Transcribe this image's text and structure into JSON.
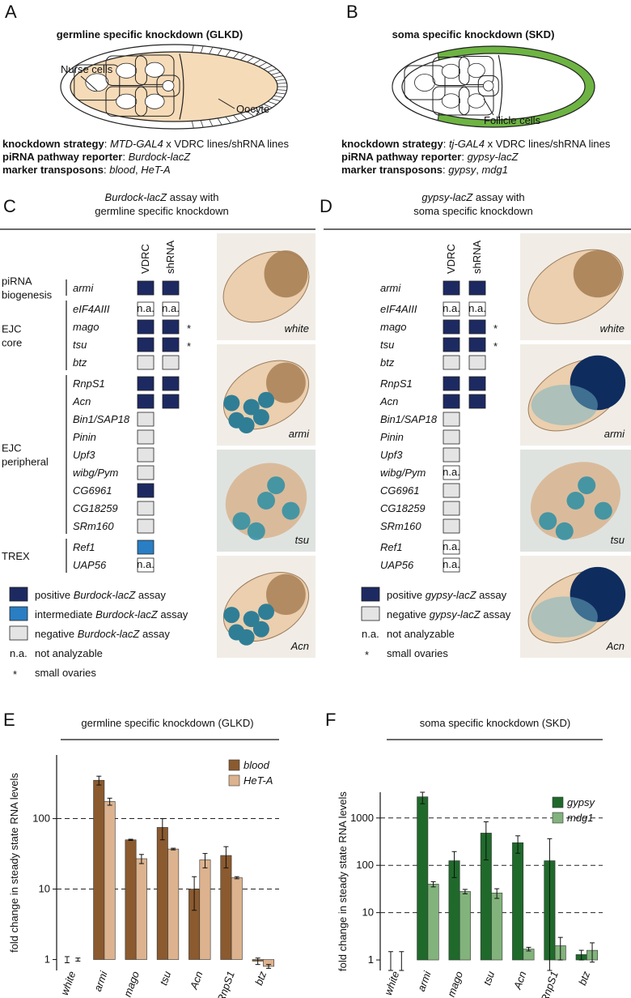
{
  "panel_a": {
    "label": "A",
    "title": "germline specific knockdown (GLKD)",
    "diagram_labels": [
      "Nurse cells",
      "Oocyte"
    ],
    "lines": [
      [
        {
          "text": "knockdown strategy",
          "style": "bold"
        },
        {
          "text": ": "
        },
        {
          "text": "MTD-GAL4",
          "style": "italic"
        },
        {
          "text": " x VDRC lines/shRNA lines"
        }
      ],
      [
        {
          "text": "piRNA pathway reporter",
          "style": "bold"
        },
        {
          "text": ": "
        },
        {
          "text": "Burdock-lacZ",
          "style": "italic"
        }
      ],
      [
        {
          "text": "marker transposons",
          "style": "bold"
        },
        {
          "text": ": "
        },
        {
          "text": "blood",
          "style": "italic"
        },
        {
          "text": ", "
        },
        {
          "text": "HeT-A",
          "style": "italic"
        }
      ]
    ]
  },
  "panel_b": {
    "label": "B",
    "title": "soma specific knockdown (SKD)",
    "diagram_labels": [
      "Follicle cells"
    ],
    "lines": [
      [
        {
          "text": "knockdown strategy",
          "style": "bold"
        },
        {
          "text": ": "
        },
        {
          "text": "tj-GAL4",
          "style": "italic"
        },
        {
          "text": " x VDRC lines/shRNA lines"
        }
      ],
      [
        {
          "text": "piRNA pathway reporter",
          "style": "bold"
        },
        {
          "text": ": "
        },
        {
          "text": "gypsy-lacZ",
          "style": "italic"
        }
      ],
      [
        {
          "text": "marker transposons",
          "style": "bold"
        },
        {
          "text": ": "
        },
        {
          "text": "gypsy",
          "style": "italic"
        },
        {
          "text": ", "
        },
        {
          "text": "mdg1",
          "style": "italic"
        }
      ]
    ]
  },
  "panel_c": {
    "label": "C",
    "title": [
      [
        {
          "text": "Burdock-lacZ",
          "style": "italic"
        },
        {
          "text": " assay with"
        }
      ],
      [
        {
          "text": "germline specific knockdown"
        }
      ]
    ],
    "columns": [
      "VDRC",
      "shRNA"
    ],
    "groups": [
      {
        "label": [
          "piRNA",
          "biogenesis"
        ],
        "rows": [
          {
            "gene": "armi",
            "cells": [
              "#1d2a62",
              "#1d2a62"
            ]
          }
        ]
      },
      {
        "label": [
          "EJC",
          "core"
        ],
        "rows": [
          {
            "gene": "eIF4AIII",
            "cells": [
              "n.a.",
              "n.a."
            ]
          },
          {
            "gene": "mago",
            "cells": [
              "#1d2a62",
              "#1d2a62"
            ],
            "note": "*"
          },
          {
            "gene": "tsu",
            "cells": [
              "#1d2a62",
              "#1d2a62"
            ],
            "note": "*"
          },
          {
            "gene": "btz",
            "cells": [
              "#e4e4e4",
              "#e4e4e4"
            ]
          }
        ]
      },
      {
        "label": [
          "EJC",
          "peripheral"
        ],
        "rows": [
          {
            "gene": "RnpS1",
            "cells": [
              "#1d2a62",
              "#1d2a62"
            ]
          },
          {
            "gene": "Acn",
            "cells": [
              "#1d2a62",
              "#1d2a62"
            ]
          },
          {
            "gene": "Bin1/SAP18",
            "cells": [
              "#e4e4e4",
              null
            ]
          },
          {
            "gene": "Pinin",
            "cells": [
              "#e4e4e4",
              null
            ]
          },
          {
            "gene": "Upf3",
            "cells": [
              "#e4e4e4",
              null
            ]
          },
          {
            "gene": "wibg/Pym",
            "cells": [
              "#e4e4e4",
              null
            ]
          },
          {
            "gene": "CG6961",
            "cells": [
              "#1d2a62",
              null
            ]
          },
          {
            "gene": "CG18259",
            "cells": [
              "#e4e4e4",
              null
            ]
          },
          {
            "gene": "SRm160",
            "cells": [
              "#e4e4e4",
              null
            ]
          }
        ]
      },
      {
        "label": [
          "TREX"
        ],
        "rows": [
          {
            "gene": "Ref1",
            "cells": [
              "#2a7ec3",
              null
            ]
          },
          {
            "gene": "UAP56",
            "cells": [
              "n.a.",
              null
            ]
          }
        ]
      }
    ],
    "images": [
      "white",
      "armi",
      "tsu",
      "Acn"
    ],
    "legend": [
      {
        "color": "#1d2a62",
        "text": [
          {
            "text": "positive "
          },
          {
            "text": "Burdock-lacZ",
            "style": "italic"
          },
          {
            "text": " assay"
          }
        ]
      },
      {
        "color": "#2a7ec3",
        "text": [
          {
            "text": "intermediate "
          },
          {
            "text": "Burdock-lacZ",
            "style": "italic"
          },
          {
            "text": " assay"
          }
        ]
      },
      {
        "color": "#e4e4e4",
        "text": [
          {
            "text": "negative "
          },
          {
            "text": "Burdock-lacZ",
            "style": "italic"
          },
          {
            "text": " assay"
          }
        ]
      },
      {
        "symbol": "n.a.",
        "text": [
          {
            "text": "not analyzable"
          }
        ]
      },
      {
        "symbol": "*",
        "text": [
          {
            "text": "small ovaries"
          }
        ]
      }
    ]
  },
  "panel_d": {
    "label": "D",
    "title": [
      [
        {
          "text": "gypsy-lacZ",
          "style": "italic"
        },
        {
          "text": " assay with"
        }
      ],
      [
        {
          "text": "soma specific knockdown"
        }
      ]
    ],
    "columns": [
      "VDRC",
      "shRNA"
    ],
    "groups": [
      {
        "rows": [
          {
            "gene": "armi",
            "cells": [
              "#1d2a62",
              "#1d2a62"
            ]
          }
        ]
      },
      {
        "rows": [
          {
            "gene": "eIF4AIII",
            "cells": [
              "n.a.",
              "n.a."
            ]
          },
          {
            "gene": "mago",
            "cells": [
              "#1d2a62",
              "#1d2a62"
            ],
            "note": "*"
          },
          {
            "gene": "tsu",
            "cells": [
              "#1d2a62",
              "#1d2a62"
            ],
            "note": "*"
          },
          {
            "gene": "btz",
            "cells": [
              "#e4e4e4",
              "#e4e4e4"
            ]
          }
        ]
      },
      {
        "rows": [
          {
            "gene": "RnpS1",
            "cells": [
              "#1d2a62",
              "#1d2a62"
            ]
          },
          {
            "gene": "Acn",
            "cells": [
              "#1d2a62",
              "#1d2a62"
            ]
          },
          {
            "gene": "Bin1/SAP18",
            "cells": [
              "#e4e4e4",
              null
            ]
          },
          {
            "gene": "Pinin",
            "cells": [
              "#e4e4e4",
              null
            ]
          },
          {
            "gene": "Upf3",
            "cells": [
              "#e4e4e4",
              null
            ]
          },
          {
            "gene": "wibg/Pym",
            "cells": [
              "n.a.",
              null
            ]
          },
          {
            "gene": "CG6961",
            "cells": [
              "#e4e4e4",
              null
            ]
          },
          {
            "gene": "CG18259",
            "cells": [
              "#e4e4e4",
              null
            ]
          },
          {
            "gene": "SRm160",
            "cells": [
              "#e4e4e4",
              null
            ]
          }
        ]
      },
      {
        "rows": [
          {
            "gene": "Ref1",
            "cells": [
              "n.a.",
              null
            ]
          },
          {
            "gene": "UAP56",
            "cells": [
              "n.a.",
              null
            ]
          }
        ]
      }
    ],
    "images": [
      "white",
      "armi",
      "tsu",
      "Acn"
    ],
    "legend": [
      {
        "color": "#1d2a62",
        "text": [
          {
            "text": "positive "
          },
          {
            "text": "gypsy-lacZ",
            "style": "italic"
          },
          {
            "text": " assay"
          }
        ]
      },
      {
        "color": "#e4e4e4",
        "text": [
          {
            "text": "negative "
          },
          {
            "text": "gypsy-lacZ",
            "style": "italic"
          },
          {
            "text": " assay"
          }
        ]
      },
      {
        "symbol": "n.a.",
        "text": [
          {
            "text": "not analyzable"
          }
        ]
      },
      {
        "symbol": "*",
        "text": [
          {
            "text": "small ovaries"
          }
        ]
      }
    ]
  },
  "chart_data": [
    {
      "panel_label": "E",
      "type": "bar",
      "title": "germline specific knockdown (GLKD)",
      "y_label": "fold change in steady state RNA levels",
      "categories": [
        "white",
        "armi",
        "mago",
        "tsu",
        "Acn",
        "RnpS1",
        "btz"
      ],
      "series": [
        {
          "name": "blood",
          "color": "#8b5a2f",
          "values": [
            1,
            350,
            50,
            75,
            10,
            30,
            0.95
          ],
          "errors": [
            0.1,
            50,
            1,
            25,
            5,
            10,
            0.1
          ]
        },
        {
          "name": "HeT-A",
          "color": "#dcb38e",
          "values": [
            1,
            175,
            27,
            37,
            26,
            14.5,
            0.8
          ],
          "errors": [
            0.05,
            20,
            4,
            1,
            6,
            0.5,
            0.05
          ]
        }
      ],
      "ylim": [
        0.7,
        800
      ],
      "yticks": [
        1,
        10,
        100
      ],
      "log_scale": true,
      "grid": true,
      "legend": "upper right"
    },
    {
      "panel_label": "F",
      "type": "bar",
      "title": "soma specific knockdown (SKD)",
      "y_label": "fold change in steady state RNA levels",
      "categories": [
        "white",
        "armi",
        "mago",
        "tsu",
        "Acn",
        "RnpS1",
        "btz"
      ],
      "series": [
        {
          "name": "gypsy",
          "color": "#1f6a2b",
          "values": [
            1,
            2800,
            125,
            480,
            300,
            125,
            1.3
          ],
          "errors": [
            0.5,
            800,
            70,
            350,
            120,
            240,
            0.3
          ]
        },
        {
          "name": "mdg1",
          "color": "#82b37c",
          "values": [
            1,
            40,
            28,
            26,
            1.7,
            2,
            1.6
          ],
          "errors": [
            0.5,
            5,
            3,
            6,
            0.15,
            1,
            0.7
          ]
        }
      ],
      "ylim": [
        0.6,
        3500
      ],
      "yticks": [
        1,
        10,
        100,
        1000
      ],
      "log_scale": true,
      "grid": true,
      "legend": "upper right"
    }
  ]
}
